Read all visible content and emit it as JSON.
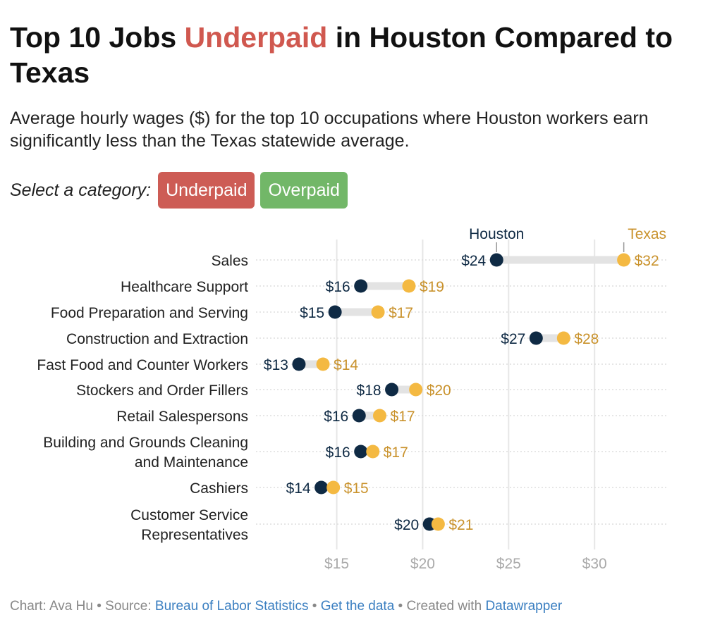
{
  "title": {
    "before": "Top 10 Jobs ",
    "highlight": "Underpaid",
    "after": " in Houston Compared to Texas"
  },
  "subtitle": "Average hourly wages ($) for the top 10 occupations where Houston workers earn significantly less than the Texas statewide average.",
  "selector": {
    "label": "Select a category:",
    "options": [
      {
        "label": "Underpaid",
        "color": "#cd5c55"
      },
      {
        "label": "Overpaid",
        "color": "#72b768"
      }
    ]
  },
  "footer": {
    "chart_by": "Chart: Ava Hu",
    "sep1": " • Source: ",
    "source": "Bureau of Labor Statistics",
    "sep2": " • ",
    "get_data": "Get the data",
    "sep3": " • Created with ",
    "tool": "Datawrapper"
  },
  "colors": {
    "houston": "#0f2a44",
    "texas_dot": "#f4b942",
    "texas_label": "#c9922c",
    "bar": "#e3e3e3"
  },
  "chart_data": {
    "type": "dot-range",
    "series": [
      {
        "name": "Houston",
        "values": [
          24.3,
          16.4,
          14.9,
          26.6,
          12.8,
          18.2,
          16.3,
          16.4,
          14.1,
          20.4
        ],
        "labels": [
          "$24",
          "$16",
          "$15",
          "$27",
          "$13",
          "$18",
          "$16",
          "$16",
          "$14",
          "$20"
        ]
      },
      {
        "name": "Texas",
        "values": [
          31.7,
          19.2,
          17.4,
          28.2,
          14.2,
          19.6,
          17.5,
          17.1,
          14.8,
          20.9
        ],
        "labels": [
          "$32",
          "$19",
          "$17",
          "$28",
          "$14",
          "$20",
          "$17",
          "$17",
          "$15",
          "$21"
        ]
      }
    ],
    "categories": [
      [
        "Sales"
      ],
      [
        "Healthcare Support"
      ],
      [
        "Food Preparation and Serving"
      ],
      [
        "Construction and Extraction"
      ],
      [
        "Fast Food and Counter Workers"
      ],
      [
        "Stockers and Order Fillers"
      ],
      [
        "Retail Salespersons"
      ],
      [
        "Building and Grounds Cleaning",
        "and Maintenance"
      ],
      [
        "Cashiers"
      ],
      [
        "Customer Service",
        "Representatives"
      ]
    ],
    "xticks": [
      15,
      20,
      25,
      30
    ],
    "xtick_labels": [
      "$15",
      "$20",
      "$25",
      "$30"
    ],
    "xlim": [
      10.3,
      34.3
    ],
    "grid": true
  }
}
